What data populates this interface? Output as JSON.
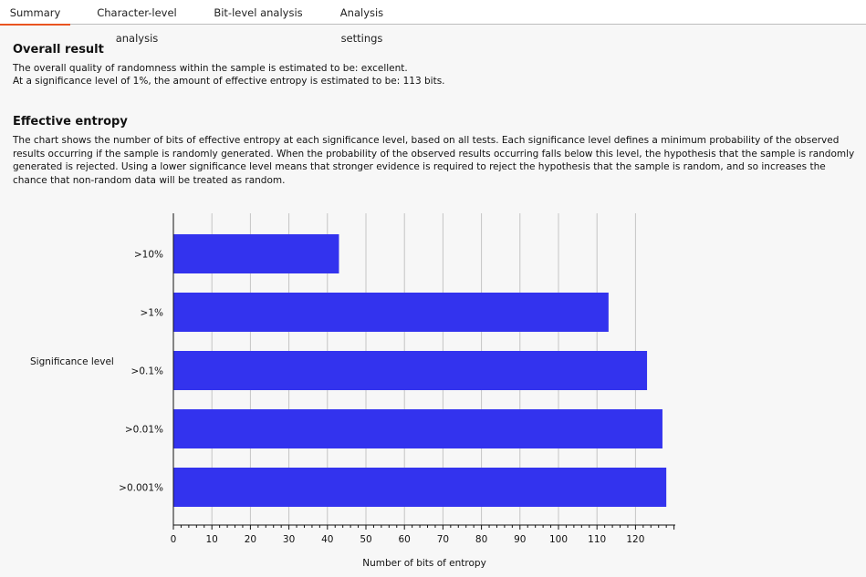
{
  "tabs": [
    {
      "label": "Summary",
      "active": true
    },
    {
      "label": "Character-level analysis",
      "active": false
    },
    {
      "label": "Bit-level analysis",
      "active": false
    },
    {
      "label": "Analysis settings",
      "active": false
    }
  ],
  "overall": {
    "title": "Overall result",
    "line1": "The overall quality of randomness within the sample is estimated to be: excellent.",
    "line2": "At a significance level of 1%, the amount of effective entropy is estimated to be: 113 bits."
  },
  "entropy": {
    "title": "Effective entropy",
    "description": "The chart shows the number of bits of effective entropy at each significance level, based on all tests. Each significance level defines a minimum probability of the observed results occurring if the sample is randomly generated. When the probability of the observed results occurring falls below this level, the hypothesis that the sample is randomly generated is rejected. Using a lower significance level means that stronger evidence is required to reject the hypothesis that the sample is random, and so increases the chance that non-random data will be treated as random."
  },
  "colors": {
    "accent": "#e95420",
    "bar": "#3333ee"
  },
  "chart_data": {
    "type": "bar",
    "orientation": "horizontal",
    "categories": [
      ">10%",
      ">1%",
      ">0.1%",
      ">0.01%",
      ">0.001%"
    ],
    "values": [
      43,
      113,
      123,
      127,
      128
    ],
    "xlabel": "Number of bits of entropy",
    "ylabel": "Significance level",
    "xlim": [
      0,
      130
    ],
    "xticks": [
      0,
      10,
      20,
      30,
      40,
      50,
      60,
      70,
      80,
      90,
      100,
      110,
      120
    ],
    "grid": true
  }
}
